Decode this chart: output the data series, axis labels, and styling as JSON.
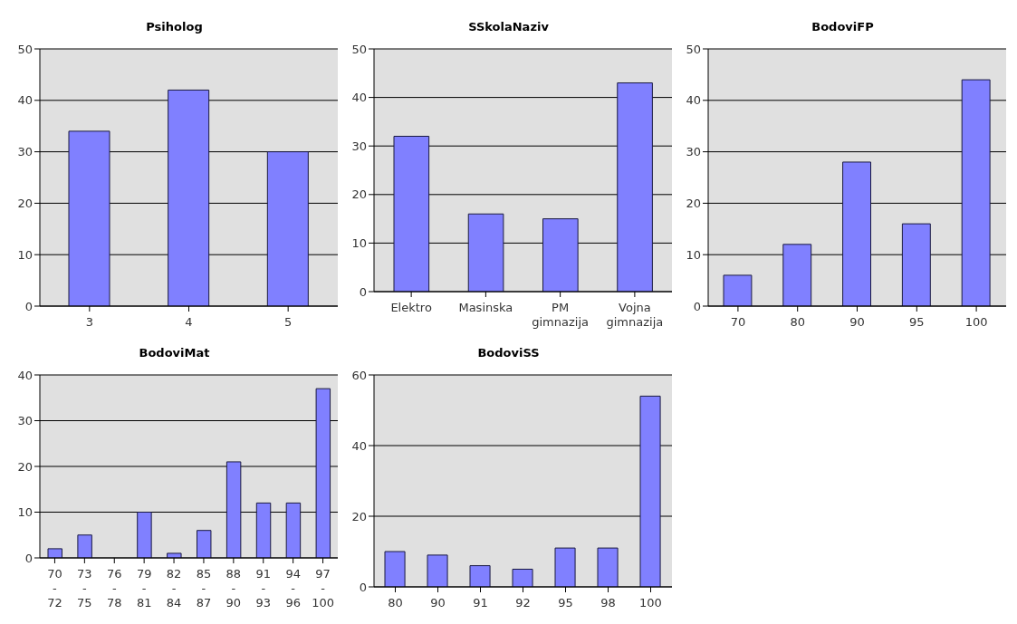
{
  "chart_data": [
    {
      "type": "bar",
      "title": "Psiholog",
      "categories": [
        "3",
        "4",
        "5"
      ],
      "values": [
        34,
        42,
        30
      ],
      "color": "#8080ff",
      "ylim": [
        0,
        50
      ],
      "yticks": [
        0,
        10,
        20,
        30,
        40,
        50
      ],
      "grid": "y"
    },
    {
      "type": "bar",
      "title": "SSkolaNaziv",
      "categories": [
        "Elektro",
        "Masinska",
        "PM gimnazija",
        "Vojna gimnazija"
      ],
      "values": [
        32,
        16,
        15,
        43
      ],
      "color": "#8080ff",
      "ylim": [
        0,
        50
      ],
      "yticks": [
        0,
        10,
        20,
        30,
        40,
        50
      ],
      "grid": "y"
    },
    {
      "type": "bar",
      "title": "BodoviFP",
      "categories": [
        "70",
        "80",
        "90",
        "95",
        "100"
      ],
      "values": [
        6,
        12,
        28,
        16,
        44
      ],
      "color": "#8080ff",
      "ylim": [
        0,
        50
      ],
      "yticks": [
        0,
        10,
        20,
        30,
        40,
        50
      ],
      "grid": "y"
    },
    {
      "type": "bar",
      "title": "BodoviMat",
      "categories": [
        "70 - 72",
        "73 - 75",
        "76 - 78",
        "79 - 81",
        "82 - 84",
        "85 - 87",
        "88 - 90",
        "91 - 93",
        "94 - 96",
        "97 - 100"
      ],
      "values": [
        2,
        5,
        0,
        10,
        1,
        6,
        21,
        12,
        12,
        37
      ],
      "color": "#8080ff",
      "ylim": [
        0,
        40
      ],
      "yticks": [
        0,
        10,
        20,
        30,
        40
      ],
      "grid": "y"
    },
    {
      "type": "bar",
      "title": "BodoviSS",
      "categories": [
        "80",
        "90",
        "91",
        "92",
        "95",
        "98",
        "100"
      ],
      "values": [
        10,
        9,
        6,
        5,
        11,
        11,
        54
      ],
      "color": "#8080ff",
      "ylim": [
        0,
        60
      ],
      "yticks": [
        0,
        20,
        40,
        60
      ],
      "grid": "y"
    }
  ]
}
